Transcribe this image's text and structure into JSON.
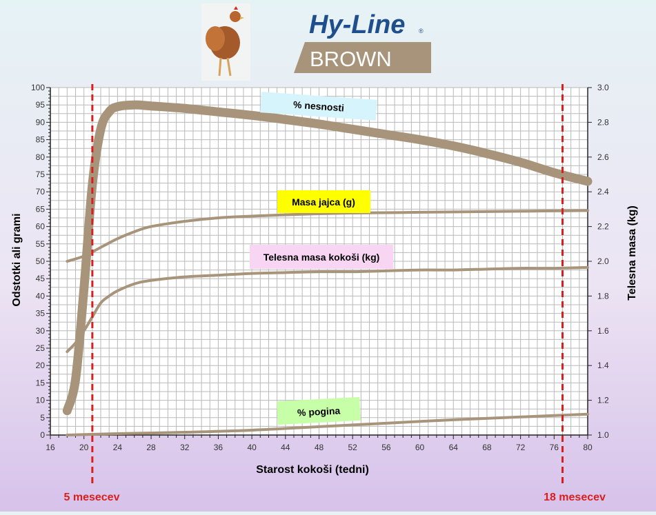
{
  "logo": {
    "brand": "Hy-Line",
    "registered": "®",
    "product": "BROWN"
  },
  "colors": {
    "curve": "#a8947a",
    "grid": "#b9b9b9",
    "marker": "#d91e1e",
    "label_pct_production": "#d6f4fb",
    "label_egg_mass": "#ffff00",
    "label_body_weight": "#f8d6f3",
    "label_mortality": "#c6ffa8"
  },
  "chart_data": {
    "type": "line",
    "xlabel": "Starost kokoši (tedni)",
    "ylabel": "Odstotki ali grami",
    "ylabel_right": "Telesna masa (kg)",
    "xlim": [
      16,
      80
    ],
    "ylim": [
      0,
      100
    ],
    "ylim_right": [
      1.0,
      3.0
    ],
    "x_ticks": [
      "16",
      "20",
      "24",
      "28",
      "32",
      "36",
      "40",
      "44",
      "48",
      "52",
      "56",
      "60",
      "64",
      "68",
      "72",
      "76",
      "80"
    ],
    "y_ticks": [
      "0",
      "5",
      "10",
      "15",
      "20",
      "25",
      "30",
      "35",
      "40",
      "45",
      "50",
      "55",
      "60",
      "65",
      "70",
      "75",
      "80",
      "85",
      "90",
      "95",
      "100"
    ],
    "y_ticks_right": [
      "1.0",
      "1.2",
      "1.4",
      "1.6",
      "1.8",
      "2.0",
      "2.2",
      "2.4",
      "2.6",
      "2.8",
      "3.0"
    ],
    "grid": true,
    "series": [
      {
        "name": "% nesnosti",
        "axis": "left",
        "x": [
          18,
          19,
          20,
          21,
          22,
          23,
          24,
          26,
          28,
          32,
          36,
          40,
          44,
          48,
          52,
          56,
          60,
          64,
          68,
          72,
          76,
          80
        ],
        "y": [
          7,
          16,
          42,
          72,
          88,
          93,
          94.5,
          95,
          94.7,
          94,
          93,
          92,
          90.8,
          89.5,
          88,
          86.5,
          85,
          83.2,
          81,
          78.5,
          75.5,
          73
        ]
      },
      {
        "name": "Masa jajca (g)",
        "axis": "left",
        "x": [
          18,
          20,
          22,
          24,
          26,
          28,
          32,
          36,
          40,
          44,
          48,
          52,
          56,
          60,
          64,
          68,
          72,
          76,
          80
        ],
        "y": [
          50,
          51.5,
          54,
          56.5,
          58.5,
          60,
          61.5,
          62.5,
          63,
          63.4,
          63.7,
          63.9,
          64,
          64.1,
          64.2,
          64.3,
          64.4,
          64.5,
          64.6
        ]
      },
      {
        "name": "Telesna masa kokoši (kg)",
        "axis": "right",
        "x": [
          18,
          19,
          20,
          21,
          22,
          23,
          24,
          26,
          28,
          32,
          36,
          40,
          44,
          48,
          52,
          56,
          60,
          64,
          68,
          72,
          76,
          80
        ],
        "y": [
          1.48,
          1.53,
          1.6,
          1.68,
          1.76,
          1.8,
          1.83,
          1.87,
          1.89,
          1.91,
          1.92,
          1.93,
          1.935,
          1.94,
          1.94,
          1.945,
          1.95,
          1.95,
          1.955,
          1.96,
          1.96,
          1.965
        ]
      },
      {
        "name": "% pogina",
        "axis": "left",
        "x": [
          18,
          24,
          32,
          40,
          48,
          56,
          64,
          72,
          80
        ],
        "y": [
          0,
          0.4,
          0.8,
          1.4,
          2.4,
          3.4,
          4.4,
          5.2,
          6
        ]
      }
    ],
    "markers": [
      {
        "x": 21,
        "label": "5 mesecev"
      },
      {
        "x": 77,
        "label": "18 mesecev"
      }
    ]
  }
}
